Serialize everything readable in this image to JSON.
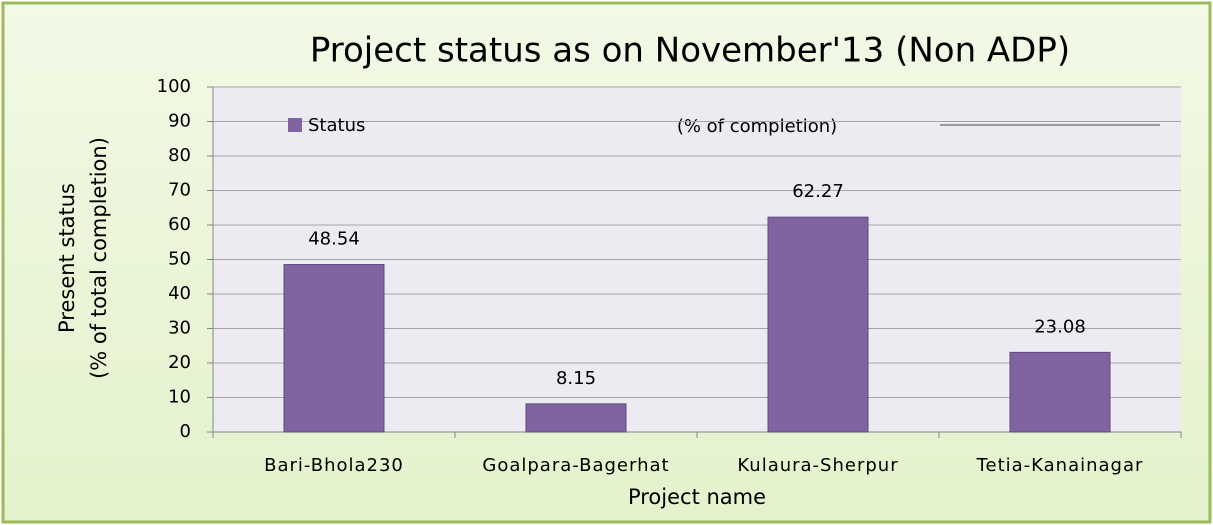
{
  "chart_data": {
    "type": "bar",
    "title": "Project status as on  November'13 (Non ADP)",
    "annotation": "(% of completion)",
    "xlabel": "Project name",
    "ylabel": [
      "Present status",
      "(% of total completion)"
    ],
    "categories": [
      "Bari-Bhola230",
      "Goalpara-Bagerhat",
      "Kulaura-Sherpur",
      "Tetia-Kanainagar"
    ],
    "series": [
      {
        "name": "Status",
        "color": "#8064a2",
        "values": [
          48.54,
          8.15,
          62.27,
          23.08
        ]
      }
    ],
    "ylim": [
      0,
      100
    ],
    "yticks": [
      0,
      10,
      20,
      30,
      40,
      50,
      60,
      70,
      80,
      90,
      100
    ],
    "grid": true,
    "legend": "upper left"
  }
}
